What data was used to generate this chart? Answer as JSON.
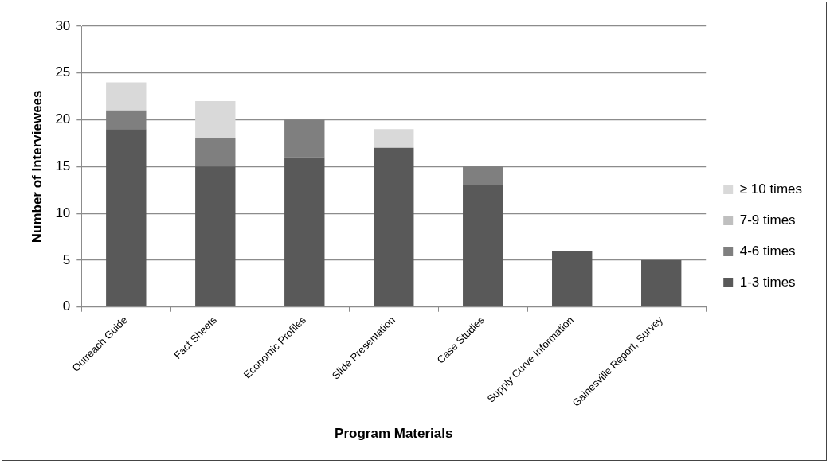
{
  "chart_data": {
    "type": "bar",
    "stacked": true,
    "xlabel": "Program Materials",
    "ylabel": "Number of Interviewees",
    "categories": [
      "Outreach Guide",
      "Fact Sheets",
      "Economic Profiles",
      "Slide Presentation",
      "Case Studies",
      "Supply Curve Information",
      "Gainesville Report, Survey"
    ],
    "series": [
      {
        "name": "1-3 times",
        "color": "#595959",
        "values": [
          19,
          15,
          16,
          17,
          13,
          6,
          5
        ]
      },
      {
        "name": "4-6 times",
        "color": "#7f7f7f",
        "values": [
          2,
          3,
          4,
          0,
          2,
          0,
          0
        ]
      },
      {
        "name": "7-9 times",
        "color": "#bfbfbf",
        "values": [
          0,
          0,
          0,
          0,
          0,
          0,
          0
        ]
      },
      {
        "name": "≥ 10 times",
        "color": "#d9d9d9",
        "values": [
          3,
          4,
          0,
          2,
          0,
          0,
          0
        ]
      }
    ],
    "ylim": [
      0,
      30
    ],
    "yticks": [
      0,
      5,
      10,
      15,
      20,
      25,
      30
    ],
    "grid": "y",
    "legend": "right"
  }
}
